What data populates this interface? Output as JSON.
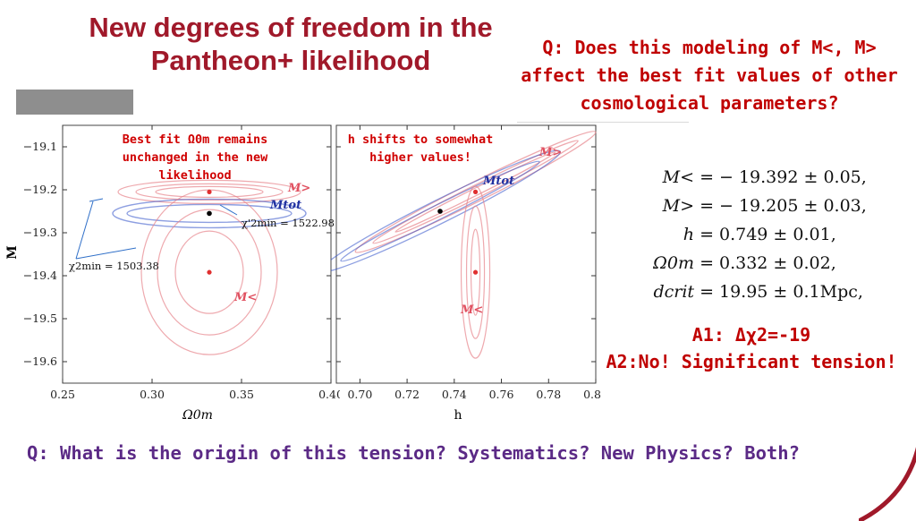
{
  "slide": {
    "title": "New degrees of freedom in the Pantheon+ likelihood",
    "question_top": "Q: Does this modeling of M<, M> affect the best fit values of other cosmological parameters?",
    "question_bottom": "Q: What is the origin of this tension? Systematics? New Physics? Both?",
    "answer_1": "A1: Δχ2=-19",
    "answer_2": "A2:No! Significant tension!"
  },
  "equations": [
    {
      "lhs": "M< =",
      "rhs": "− 19.392 ± 0.05,"
    },
    {
      "lhs": "M> =",
      "rhs": "− 19.205 ± 0.03,"
    },
    {
      "lhs": "h =",
      "rhs": "0.749 ± 0.01,"
    },
    {
      "lhs": "Ω0m =",
      "rhs": "0.332 ± 0.02,"
    },
    {
      "lhs": "dcrit =",
      "rhs": "19.95 ± 0.1Mpc,"
    }
  ],
  "annotations": {
    "left_note": "Best fit Ω0m remains unchanged in the new likelihood",
    "right_note": "h shifts to somewhat higher values!",
    "chi_top": "χ'2min = 1522.98",
    "chi_bottom": "χ2min = 1503.38"
  },
  "chart_data": [
    {
      "type": "scatter",
      "xlabel": "Ω0m",
      "ylabel": "M",
      "xlim": [
        0.25,
        0.4
      ],
      "ylim": [
        -19.65,
        -19.05
      ],
      "x_ticks": [
        "0.25",
        "0.30",
        "0.35",
        "0.40"
      ],
      "y_ticks": [
        "−19.1",
        "−19.2",
        "−19.3",
        "−19.4",
        "−19.5",
        "−19.6"
      ],
      "series": [
        {
          "name": "M>",
          "color": "#e7848b",
          "best_fit": {
            "x": 0.332,
            "y": -19.205
          }
        },
        {
          "name": "Mtot",
          "color": "#2f51c8",
          "best_fit": {
            "x": 0.332,
            "y": -19.255
          }
        },
        {
          "name": "M<",
          "color": "#e7848b",
          "best_fit": {
            "x": 0.332,
            "y": -19.392
          }
        }
      ]
    },
    {
      "type": "scatter",
      "xlabel": "h",
      "ylabel": "",
      "xlim": [
        0.69,
        0.8
      ],
      "ylim": [
        -19.65,
        -19.05
      ],
      "x_ticks": [
        "0.70",
        "0.72",
        "0.74",
        "0.76",
        "0.78",
        "0.80"
      ],
      "y_ticks": [],
      "series": [
        {
          "name": "M>",
          "color": "#e7848b",
          "best_fit": {
            "x": 0.749,
            "y": -19.205
          }
        },
        {
          "name": "Mtot",
          "color": "#2f51c8",
          "best_fit": {
            "x": 0.734,
            "y": -19.25
          }
        },
        {
          "name": "M<",
          "color": "#e7848b",
          "best_fit": {
            "x": 0.749,
            "y": -19.392
          }
        }
      ]
    }
  ],
  "colors": {
    "title": "#a0192a",
    "answer": "#c00000",
    "question_bottom": "#5b2a86",
    "contour_red": "#e7848b",
    "contour_blue": "#2f51c8"
  }
}
